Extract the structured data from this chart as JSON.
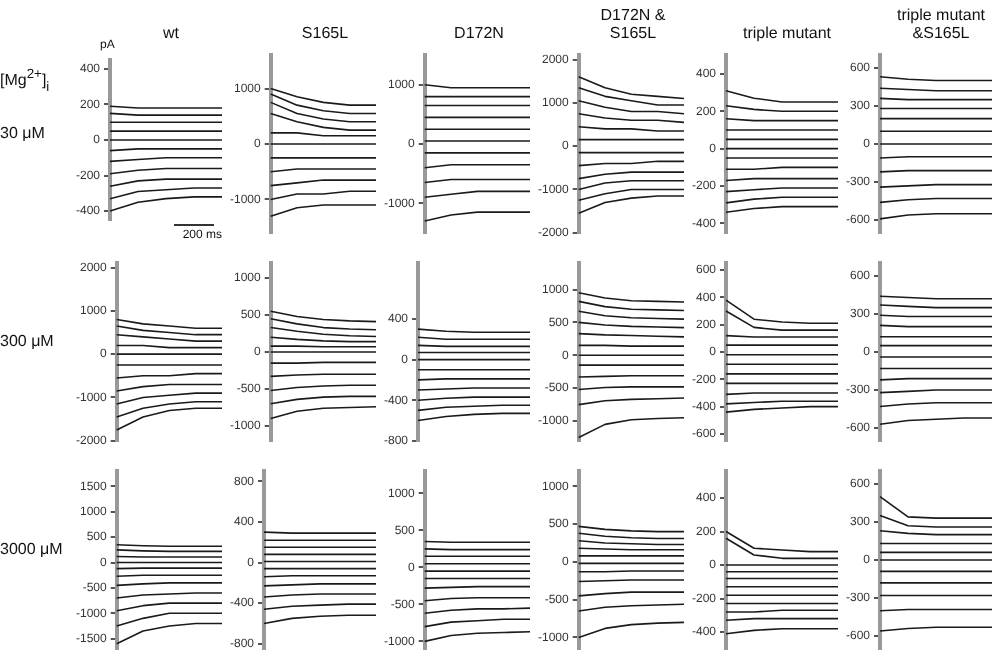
{
  "chart_data": [
    {
      "type": "line",
      "title": "wt",
      "ylabel": "pA",
      "xlabel": "200 ms",
      "annotations": [
        "[Mg$^{2+}$]$_{i}$",
        "30 μM"
      ],
      "categories": [
        null,
        null,
        null,
        null,
        null
      ],
      "color": "#1a1a1a",
      "ylim": [
        -450,
        450
      ],
      "yticks": [
        400,
        200,
        0,
        -200,
        -400
      ],
      "series": [
        {
          "values": [
            190,
            180,
            180,
            180,
            180
          ]
        },
        {
          "values": [
            150,
            140,
            140,
            140,
            140
          ]
        },
        {
          "values": [
            100,
            100,
            100,
            100,
            100
          ]
        },
        {
          "values": [
            50,
            50,
            50,
            50,
            50
          ]
        },
        {
          "values": [
            0,
            0,
            0,
            0,
            0
          ]
        },
        {
          "values": [
            -60,
            -50,
            -50,
            -50,
            -50
          ]
        },
        {
          "values": [
            -120,
            -110,
            -100,
            -100,
            -100
          ]
        },
        {
          "values": [
            -190,
            -170,
            -160,
            -160,
            -160
          ]
        },
        {
          "values": [
            -260,
            -230,
            -220,
            -220,
            -220
          ]
        },
        {
          "values": [
            -330,
            -290,
            -280,
            -270,
            -270
          ]
        },
        {
          "values": [
            -400,
            -350,
            -330,
            -320,
            -320
          ]
        }
      ]
    },
    {
      "type": "line",
      "title": "S165L",
      "categories": [
        null,
        null,
        null,
        null,
        null
      ],
      "color": "#1a1a1a",
      "ylim": [
        -1600,
        1600
      ],
      "yticks": [
        1000,
        0,
        -1000
      ],
      "series": [
        {
          "values": [
            1000,
            850,
            750,
            700,
            700
          ]
        },
        {
          "values": [
            900,
            700,
            600,
            550,
            550
          ]
        },
        {
          "values": [
            750,
            550,
            450,
            400,
            400
          ]
        },
        {
          "values": [
            550,
            400,
            300,
            250,
            250
          ]
        },
        {
          "values": [
            200,
            200,
            150,
            150,
            150
          ]
        },
        {
          "values": [
            0,
            0,
            0,
            0,
            0
          ]
        },
        {
          "values": [
            -250,
            -250,
            -250,
            -250,
            -250
          ]
        },
        {
          "values": [
            -500,
            -450,
            -450,
            -450,
            -450
          ]
        },
        {
          "values": [
            -750,
            -700,
            -650,
            -650,
            -650
          ]
        },
        {
          "values": [
            -1000,
            -900,
            -900,
            -850,
            -850
          ]
        },
        {
          "values": [
            -1300,
            -1150,
            -1100,
            -1100,
            -1100
          ]
        }
      ]
    },
    {
      "type": "line",
      "title": "D172N",
      "categories": [
        null,
        null,
        null,
        null,
        null
      ],
      "color": "#1a1a1a",
      "ylim": [
        -1500,
        1500
      ],
      "yticks": [
        1000,
        0,
        -1000
      ],
      "series": [
        {
          "values": [
            1000,
            950,
            950,
            950,
            950
          ]
        },
        {
          "values": [
            800,
            800,
            800,
            800,
            800
          ]
        },
        {
          "values": [
            650,
            650,
            650,
            650,
            650
          ]
        },
        {
          "values": [
            450,
            450,
            450,
            450,
            450
          ]
        },
        {
          "values": [
            250,
            250,
            250,
            250,
            250
          ]
        },
        {
          "values": [
            50,
            50,
            50,
            50,
            50
          ]
        },
        {
          "values": [
            -150,
            -150,
            -150,
            -150,
            -150
          ]
        },
        {
          "values": [
            -400,
            -350,
            -350,
            -350,
            -350
          ]
        },
        {
          "values": [
            -650,
            -600,
            -600,
            -600,
            -600
          ]
        },
        {
          "values": [
            -900,
            -850,
            -800,
            -800,
            -800
          ]
        },
        {
          "values": [
            -1300,
            -1200,
            -1150,
            -1150,
            -1150
          ]
        }
      ]
    },
    {
      "type": "line",
      "title": "D172N & S165L",
      "categories": [
        null,
        null,
        null,
        null,
        null
      ],
      "color": "#1a1a1a",
      "ylim": [
        -2000,
        2100
      ],
      "yticks": [
        2000,
        1000,
        0,
        -1000,
        -2000
      ],
      "series": [
        {
          "values": [
            1600,
            1350,
            1200,
            1150,
            1100
          ]
        },
        {
          "values": [
            1350,
            1150,
            1050,
            950,
            950
          ]
        },
        {
          "values": [
            1050,
            900,
            800,
            800,
            750
          ]
        },
        {
          "values": [
            750,
            650,
            600,
            600,
            550
          ]
        },
        {
          "values": [
            450,
            400,
            400,
            350,
            350
          ]
        },
        {
          "values": [
            150,
            150,
            150,
            150,
            150
          ]
        },
        {
          "values": [
            -150,
            -150,
            -150,
            -150,
            -150
          ]
        },
        {
          "values": [
            -450,
            -400,
            -400,
            -350,
            -350
          ]
        },
        {
          "values": [
            -750,
            -650,
            -600,
            -600,
            -600
          ]
        },
        {
          "values": [
            -1000,
            -850,
            -800,
            -800,
            -800
          ]
        },
        {
          "values": [
            -1250,
            -1100,
            -1000,
            -1000,
            -1000
          ]
        },
        {
          "values": [
            -1550,
            -1300,
            -1200,
            -1150,
            -1150
          ]
        }
      ]
    },
    {
      "type": "line",
      "title": "triple mutant",
      "categories": [
        null,
        null,
        null,
        null,
        null
      ],
      "color": "#1a1a1a",
      "ylim": [
        -450,
        500
      ],
      "yticks": [
        400,
        200,
        0,
        -200,
        -400
      ],
      "series": [
        {
          "values": [
            310,
            270,
            250,
            250,
            250
          ]
        },
        {
          "values": [
            230,
            210,
            200,
            200,
            200
          ]
        },
        {
          "values": [
            160,
            150,
            150,
            150,
            150
          ]
        },
        {
          "values": [
            100,
            100,
            100,
            100,
            100
          ]
        },
        {
          "values": [
            50,
            50,
            50,
            50,
            50
          ]
        },
        {
          "values": [
            0,
            0,
            0,
            0,
            0
          ]
        },
        {
          "values": [
            -50,
            -50,
            -50,
            -50,
            -50
          ]
        },
        {
          "values": [
            -110,
            -110,
            -100,
            -100,
            -100
          ]
        },
        {
          "values": [
            -170,
            -160,
            -160,
            -160,
            -160
          ]
        },
        {
          "values": [
            -230,
            -220,
            -210,
            -210,
            -210
          ]
        },
        {
          "values": [
            -290,
            -270,
            -260,
            -260,
            -260
          ]
        },
        {
          "values": [
            -340,
            -320,
            -310,
            -310,
            -310
          ]
        }
      ]
    },
    {
      "type": "line",
      "title": "triple mutant &S165L",
      "categories": [
        null,
        null,
        null,
        null,
        null
      ],
      "color": "#1a1a1a",
      "ylim": [
        -700,
        700
      ],
      "yticks": [
        600,
        300,
        0,
        -300,
        -600
      ],
      "series": [
        {
          "values": [
            530,
            510,
            500,
            500,
            500
          ]
        },
        {
          "values": [
            440,
            430,
            420,
            420,
            420
          ]
        },
        {
          "values": [
            360,
            350,
            350,
            350,
            350
          ]
        },
        {
          "values": [
            280,
            280,
            280,
            280,
            280
          ]
        },
        {
          "values": [
            200,
            200,
            200,
            200,
            200
          ]
        },
        {
          "values": [
            100,
            100,
            100,
            100,
            100
          ]
        },
        {
          "values": [
            0,
            0,
            0,
            0,
            0
          ]
        },
        {
          "values": [
            -110,
            -100,
            -100,
            -100,
            -100
          ]
        },
        {
          "values": [
            -220,
            -210,
            -210,
            -210,
            -210
          ]
        },
        {
          "values": [
            -340,
            -330,
            -320,
            -320,
            -320
          ]
        },
        {
          "values": [
            -460,
            -440,
            -430,
            -430,
            -430
          ]
        },
        {
          "values": [
            -590,
            -560,
            -550,
            -550,
            -550
          ]
        }
      ]
    },
    {
      "type": "line",
      "annotations": [
        "300 μM"
      ],
      "categories": [
        null,
        null,
        null,
        null,
        null
      ],
      "color": "#1a1a1a",
      "ylim": [
        -2000,
        2100
      ],
      "yticks": [
        2000,
        1000,
        0,
        -1000,
        -2000
      ],
      "series": [
        {
          "values": [
            800,
            700,
            650,
            600,
            600
          ]
        },
        {
          "values": [
            650,
            550,
            500,
            450,
            450
          ]
        },
        {
          "values": [
            450,
            400,
            350,
            300,
            300
          ]
        },
        {
          "values": [
            200,
            200,
            150,
            150,
            150
          ]
        },
        {
          "values": [
            0,
            0,
            0,
            0,
            0
          ]
        },
        {
          "values": [
            -250,
            -250,
            -250,
            -250,
            -250
          ]
        },
        {
          "values": [
            -550,
            -500,
            -500,
            -450,
            -450
          ]
        },
        {
          "values": [
            -850,
            -750,
            -700,
            -700,
            -700
          ]
        },
        {
          "values": [
            -1150,
            -1000,
            -950,
            -900,
            -900
          ]
        },
        {
          "values": [
            -1450,
            -1250,
            -1150,
            -1100,
            -1100
          ]
        },
        {
          "values": [
            -1750,
            -1450,
            -1300,
            -1250,
            -1250
          ]
        }
      ]
    },
    {
      "type": "line",
      "categories": [
        null,
        null,
        null,
        null,
        null
      ],
      "color": "#1a1a1a",
      "ylim": [
        -1200,
        1200
      ],
      "yticks": [
        1000,
        500,
        0,
        -500,
        -1000
      ],
      "series": [
        {
          "values": [
            550,
            480,
            440,
            420,
            410
          ]
        },
        {
          "values": [
            450,
            380,
            330,
            310,
            300
          ]
        },
        {
          "values": [
            330,
            280,
            240,
            220,
            210
          ]
        },
        {
          "values": [
            200,
            170,
            150,
            140,
            140
          ]
        },
        {
          "values": [
            80,
            80,
            70,
            70,
            70
          ]
        },
        {
          "values": [
            0,
            0,
            0,
            0,
            0
          ]
        },
        {
          "values": [
            -150,
            -150,
            -140,
            -140,
            -140
          ]
        },
        {
          "values": [
            -330,
            -310,
            -300,
            -300,
            -300
          ]
        },
        {
          "values": [
            -520,
            -480,
            -460,
            -450,
            -450
          ]
        },
        {
          "values": [
            -700,
            -640,
            -610,
            -600,
            -600
          ]
        },
        {
          "values": [
            -900,
            -800,
            -760,
            -750,
            -740
          ]
        }
      ]
    },
    {
      "type": "line",
      "categories": [
        null,
        null,
        null,
        null,
        null
      ],
      "color": "#1a1a1a",
      "ylim": [
        -800,
        950
      ],
      "yticks": [
        400,
        0,
        -400,
        -800
      ],
      "series": [
        {
          "values": [
            300,
            280,
            270,
            270,
            270
          ]
        },
        {
          "values": [
            220,
            200,
            200,
            200,
            200
          ]
        },
        {
          "values": [
            140,
            130,
            130,
            130,
            130
          ]
        },
        {
          "values": [
            70,
            70,
            70,
            70,
            70
          ]
        },
        {
          "values": [
            0,
            0,
            0,
            0,
            0
          ]
        },
        {
          "values": [
            -100,
            -100,
            -100,
            -100,
            -100
          ]
        },
        {
          "values": [
            -200,
            -190,
            -190,
            -190,
            -190
          ]
        },
        {
          "values": [
            -300,
            -290,
            -280,
            -280,
            -280
          ]
        },
        {
          "values": [
            -400,
            -380,
            -370,
            -370,
            -370
          ]
        },
        {
          "values": [
            -500,
            -470,
            -460,
            -450,
            -450
          ]
        },
        {
          "values": [
            -600,
            -560,
            -540,
            -530,
            -530
          ]
        }
      ]
    },
    {
      "type": "line",
      "categories": [
        null,
        null,
        null,
        null,
        null
      ],
      "color": "#1a1a1a",
      "ylim": [
        -1300,
        1400
      ],
      "yticks": [
        1000,
        500,
        0,
        -500,
        -1000
      ],
      "series": [
        {
          "values": [
            950,
            870,
            830,
            820,
            810
          ]
        },
        {
          "values": [
            820,
            740,
            700,
            690,
            680
          ]
        },
        {
          "values": [
            670,
            600,
            570,
            560,
            550
          ]
        },
        {
          "values": [
            500,
            460,
            440,
            430,
            420
          ]
        },
        {
          "values": [
            330,
            310,
            300,
            290,
            280
          ]
        },
        {
          "values": [
            150,
            150,
            140,
            140,
            140
          ]
        },
        {
          "values": [
            0,
            0,
            0,
            0,
            0
          ]
        },
        {
          "values": [
            -150,
            -150,
            -150,
            -150,
            -150
          ]
        },
        {
          "values": [
            -330,
            -320,
            -310,
            -310,
            -310
          ]
        },
        {
          "values": [
            -520,
            -490,
            -480,
            -480,
            -480
          ]
        },
        {
          "values": [
            -750,
            -690,
            -670,
            -660,
            -650
          ]
        },
        {
          "values": [
            -1250,
            -1050,
            -980,
            -960,
            -950
          ]
        }
      ]
    },
    {
      "type": "line",
      "categories": [
        null,
        null,
        null,
        null,
        null
      ],
      "color": "#1a1a1a",
      "ylim": [
        -650,
        650
      ],
      "yticks": [
        600,
        400,
        200,
        0,
        -200,
        -400,
        -600
      ],
      "series": [
        {
          "values": [
            380,
            240,
            220,
            210,
            210
          ]
        },
        {
          "values": [
            300,
            180,
            160,
            160,
            160
          ]
        },
        {
          "values": [
            120,
            110,
            110,
            110,
            110
          ]
        },
        {
          "values": [
            50,
            50,
            50,
            50,
            50
          ]
        },
        {
          "values": [
            -20,
            -20,
            -20,
            -20,
            -20
          ]
        },
        {
          "values": [
            -90,
            -90,
            -90,
            -90,
            -90
          ]
        },
        {
          "values": [
            -160,
            -160,
            -160,
            -160,
            -160
          ]
        },
        {
          "values": [
            -230,
            -230,
            -230,
            -230,
            -230
          ]
        },
        {
          "values": [
            -310,
            -300,
            -300,
            -300,
            -300
          ]
        },
        {
          "values": [
            -380,
            -370,
            -360,
            -360,
            -360
          ]
        },
        {
          "values": [
            -440,
            -420,
            -410,
            -400,
            -400
          ]
        }
      ]
    },
    {
      "type": "line",
      "categories": [
        null,
        null,
        null,
        null,
        null
      ],
      "color": "#1a1a1a",
      "ylim": [
        -700,
        700
      ],
      "yticks": [
        600,
        300,
        0,
        -300,
        -600
      ],
      "series": [
        {
          "values": [
            440,
            430,
            420,
            420,
            420
          ]
        },
        {
          "values": [
            370,
            360,
            350,
            350,
            350
          ]
        },
        {
          "values": [
            290,
            280,
            280,
            280,
            280
          ]
        },
        {
          "values": [
            210,
            200,
            200,
            200,
            200
          ]
        },
        {
          "values": [
            120,
            120,
            120,
            120,
            120
          ]
        },
        {
          "values": [
            50,
            50,
            50,
            50,
            50
          ]
        },
        {
          "values": [
            -40,
            -40,
            -40,
            -40,
            -40
          ]
        },
        {
          "values": [
            -130,
            -130,
            -130,
            -130,
            -130
          ]
        },
        {
          "values": [
            -220,
            -210,
            -210,
            -210,
            -210
          ]
        },
        {
          "values": [
            -320,
            -310,
            -300,
            -300,
            -300
          ]
        },
        {
          "values": [
            -430,
            -410,
            -400,
            -400,
            -400
          ]
        },
        {
          "values": [
            -570,
            -540,
            -530,
            -520,
            -520
          ]
        }
      ]
    },
    {
      "type": "line",
      "annotations": [
        "3000 μM"
      ],
      "categories": [
        null,
        null,
        null,
        null,
        null
      ],
      "color": "#1a1a1a",
      "ylim": [
        -1700,
        1800
      ],
      "yticks": [
        1500,
        1000,
        500,
        0,
        -500,
        -1000,
        -1500
      ],
      "series": [
        {
          "values": [
            350,
            330,
            320,
            320,
            320
          ]
        },
        {
          "values": [
            250,
            230,
            220,
            220,
            220
          ]
        },
        {
          "values": [
            120,
            110,
            110,
            110,
            110
          ]
        },
        {
          "values": [
            0,
            0,
            0,
            0,
            0
          ]
        },
        {
          "values": [
            -120,
            -110,
            -110,
            -110,
            -110
          ]
        },
        {
          "values": [
            -270,
            -250,
            -250,
            -250,
            -250
          ]
        },
        {
          "values": [
            -450,
            -420,
            -400,
            -400,
            -400
          ]
        },
        {
          "values": [
            -700,
            -640,
            -620,
            -600,
            -600
          ]
        },
        {
          "values": [
            -950,
            -850,
            -800,
            -800,
            -800
          ]
        },
        {
          "values": [
            -1250,
            -1100,
            -1000,
            -1000,
            -1000
          ]
        },
        {
          "values": [
            -1600,
            -1350,
            -1250,
            -1200,
            -1200
          ]
        }
      ]
    },
    {
      "type": "line",
      "categories": [
        null,
        null,
        null,
        null,
        null
      ],
      "color": "#1a1a1a",
      "ylim": [
        -850,
        900
      ],
      "yticks": [
        800,
        400,
        0,
        -400,
        -800
      ],
      "series": [
        {
          "values": [
            300,
            290,
            290,
            290,
            290
          ]
        },
        {
          "values": [
            220,
            220,
            220,
            220,
            220
          ]
        },
        {
          "values": [
            150,
            150,
            150,
            150,
            150
          ]
        },
        {
          "values": [
            80,
            80,
            80,
            80,
            80
          ]
        },
        {
          "values": [
            10,
            10,
            10,
            10,
            10
          ]
        },
        {
          "values": [
            -60,
            -60,
            -60,
            -60,
            -60
          ]
        },
        {
          "values": [
            -140,
            -130,
            -130,
            -130,
            -130
          ]
        },
        {
          "values": [
            -230,
            -220,
            -210,
            -210,
            -210
          ]
        },
        {
          "values": [
            -340,
            -320,
            -310,
            -310,
            -310
          ]
        },
        {
          "values": [
            -460,
            -430,
            -420,
            -410,
            -410
          ]
        },
        {
          "values": [
            -600,
            -550,
            -530,
            -520,
            -520
          ]
        }
      ]
    },
    {
      "type": "line",
      "categories": [
        null,
        null,
        null,
        null,
        null
      ],
      "color": "#1a1a1a",
      "ylim": [
        -1100,
        1300
      ],
      "yticks": [
        1000,
        500,
        0,
        -500,
        -1000
      ],
      "series": [
        {
          "values": [
            350,
            340,
            340,
            340,
            340
          ]
        },
        {
          "values": [
            250,
            240,
            240,
            240,
            240
          ]
        },
        {
          "values": [
            150,
            150,
            150,
            150,
            150
          ]
        },
        {
          "values": [
            50,
            50,
            50,
            50,
            50
          ]
        },
        {
          "values": [
            -50,
            -50,
            -50,
            -50,
            -50
          ]
        },
        {
          "values": [
            -150,
            -150,
            -150,
            -150,
            -150
          ]
        },
        {
          "values": [
            -280,
            -270,
            -260,
            -260,
            -260
          ]
        },
        {
          "values": [
            -450,
            -420,
            -410,
            -410,
            -410
          ]
        },
        {
          "values": [
            -620,
            -580,
            -560,
            -560,
            -550
          ]
        },
        {
          "values": [
            -800,
            -740,
            -720,
            -700,
            -700
          ]
        },
        {
          "values": [
            -1000,
            -920,
            -890,
            -880,
            -870
          ]
        }
      ]
    },
    {
      "type": "line",
      "categories": [
        null,
        null,
        null,
        null,
        null
      ],
      "color": "#1a1a1a",
      "ylim": [
        -1150,
        1200
      ],
      "yticks": [
        1000,
        500,
        0,
        -500,
        -1000
      ],
      "series": [
        {
          "values": [
            470,
            430,
            410,
            400,
            400
          ]
        },
        {
          "values": [
            380,
            340,
            320,
            310,
            310
          ]
        },
        {
          "values": [
            280,
            250,
            240,
            230,
            230
          ]
        },
        {
          "values": [
            180,
            170,
            160,
            160,
            160
          ]
        },
        {
          "values": [
            80,
            80,
            80,
            80,
            80
          ]
        },
        {
          "values": [
            -20,
            -20,
            -20,
            -20,
            -20
          ]
        },
        {
          "values": [
            -130,
            -130,
            -120,
            -120,
            -120
          ]
        },
        {
          "values": [
            -260,
            -250,
            -240,
            -240,
            -240
          ]
        },
        {
          "values": [
            -450,
            -420,
            -400,
            -400,
            -400
          ]
        },
        {
          "values": [
            -650,
            -600,
            -580,
            -570,
            -560
          ]
        },
        {
          "values": [
            -1000,
            -880,
            -830,
            -810,
            -800
          ]
        }
      ]
    },
    {
      "type": "line",
      "categories": [
        null,
        null,
        null,
        null,
        null
      ],
      "color": "#1a1a1a",
      "ylim": [
        -500,
        560
      ],
      "yticks": [
        400,
        200,
        0,
        -200,
        -400
      ],
      "series": [
        {
          "values": [
            200,
            100,
            90,
            80,
            80
          ]
        },
        {
          "values": [
            160,
            60,
            40,
            40,
            40
          ]
        },
        {
          "values": [
            0,
            0,
            0,
            0,
            0
          ]
        },
        {
          "values": [
            -40,
            -40,
            -40,
            -40,
            -40
          ]
        },
        {
          "values": [
            -80,
            -80,
            -80,
            -80,
            -80
          ]
        },
        {
          "values": [
            -130,
            -130,
            -130,
            -130,
            -130
          ]
        },
        {
          "values": [
            -180,
            -180,
            -180,
            -180,
            -180
          ]
        },
        {
          "values": [
            -230,
            -230,
            -230,
            -230,
            -230
          ]
        },
        {
          "values": [
            -280,
            -280,
            -270,
            -270,
            -270
          ]
        },
        {
          "values": [
            -330,
            -320,
            -320,
            -320,
            -320
          ]
        },
        {
          "values": [
            -410,
            -390,
            -380,
            -380,
            -380
          ]
        }
      ]
    },
    {
      "type": "line",
      "categories": [
        null,
        null,
        null,
        null,
        null
      ],
      "color": "#1a1a1a",
      "ylim": [
        -700,
        700
      ],
      "yticks": [
        600,
        300,
        0,
        -300,
        -600
      ],
      "series": [
        {
          "values": [
            500,
            340,
            330,
            330,
            330
          ]
        },
        {
          "values": [
            350,
            270,
            260,
            260,
            260
          ]
        },
        {
          "values": [
            230,
            210,
            200,
            200,
            200
          ]
        },
        {
          "values": [
            130,
            130,
            130,
            130,
            130
          ]
        },
        {
          "values": [
            60,
            60,
            60,
            60,
            60
          ]
        },
        {
          "values": [
            0,
            0,
            0,
            0,
            0
          ]
        },
        {
          "values": [
            -90,
            -90,
            -90,
            -90,
            -90
          ]
        },
        {
          "values": [
            -180,
            -180,
            -180,
            -180,
            -180
          ]
        },
        {
          "values": [
            -280,
            -280,
            -280,
            -280,
            -280
          ]
        },
        {
          "values": [
            -400,
            -390,
            -390,
            -390,
            -390
          ]
        },
        {
          "values": [
            -560,
            -540,
            -530,
            -530,
            -530
          ]
        }
      ]
    }
  ]
}
